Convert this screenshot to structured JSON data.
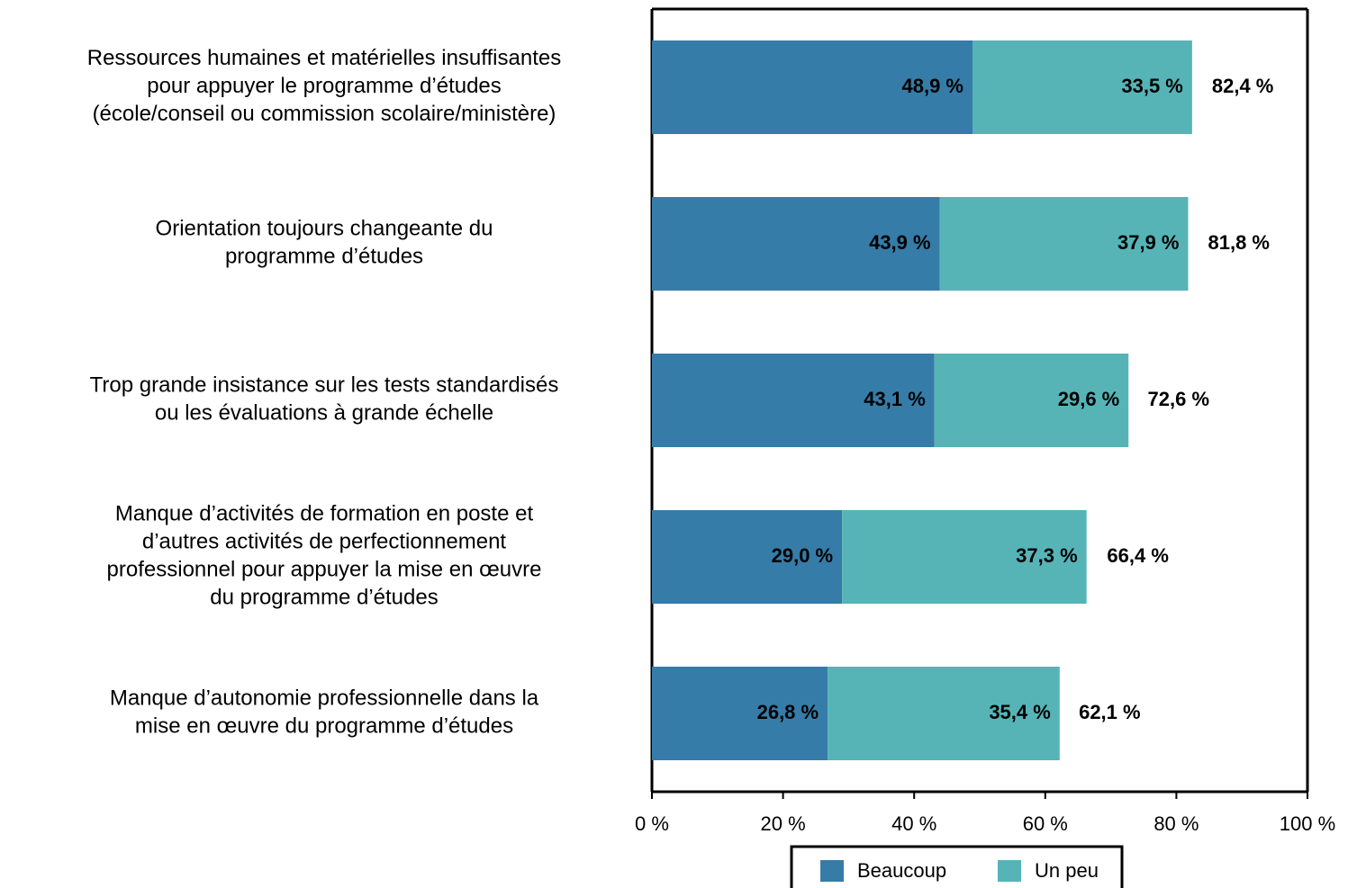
{
  "chart_data": {
    "type": "stacked_barh",
    "categories": [
      "Ressources humaines et matérielles insuffisantes\npour appuyer le programme d’études\n(école/conseil ou commission scolaire/ministère)",
      "Orientation toujours changeante du\nprogramme d’études",
      "Trop grande insistance sur les tests standardisés\nou les évaluations à grande échelle",
      "Manque d’activités de formation en poste et\nd’autres activités de perfectionnement\nprofessionnel pour appuyer la mise en œuvre\ndu programme d’études",
      "Manque d’autonomie professionnelle dans la\nmise en œuvre du programme d’études"
    ],
    "series": [
      {
        "name": "Beaucoup",
        "color": "#367ca8",
        "values": [
          48.9,
          43.9,
          43.1,
          29.0,
          26.8
        ],
        "value_labels": [
          "48,9 %",
          "43,9 %",
          "43,1 %",
          "29,0 %",
          "26,8 %"
        ]
      },
      {
        "name": "Un peu",
        "color": "#56b4b7",
        "values": [
          33.5,
          37.9,
          29.6,
          37.3,
          35.4
        ],
        "value_labels": [
          "33,5 %",
          "37,9 %",
          "29,6 %",
          "37,3 %",
          "35,4 %"
        ]
      }
    ],
    "totals": [
      82.4,
      81.8,
      72.6,
      66.4,
      62.1
    ],
    "total_labels": [
      "82,4 %",
      "81,8 %",
      "72,6 %",
      "66,4 %",
      "62,1 %"
    ],
    "xlim": [
      0,
      100
    ],
    "xticks": [
      {
        "value": 0,
        "label": "0 %"
      },
      {
        "value": 20,
        "label": "20 %"
      },
      {
        "value": 40,
        "label": "40 %"
      },
      {
        "value": 60,
        "label": "60 %"
      },
      {
        "value": 80,
        "label": "80 %"
      },
      {
        "value": 100,
        "label": "100 %"
      }
    ],
    "legend": "bottom"
  }
}
